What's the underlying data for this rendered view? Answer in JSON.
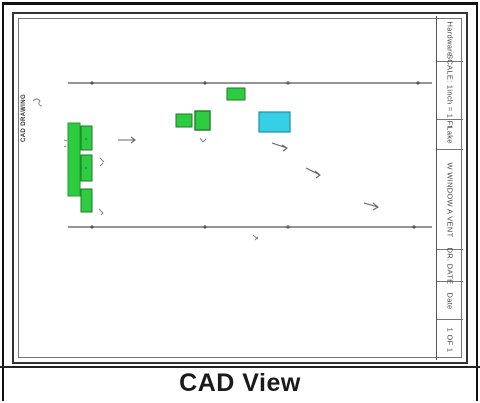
{
  "caption": "CAD View",
  "drawing": {
    "sheet_label": "CAD DRAWING",
    "title_block": [
      "Hardware",
      "SCALE: 1inch = 1 Ft",
      "Lake",
      "W WINDOW A VENT",
      "DR. DATE",
      "Date",
      "1 OF 1"
    ],
    "colors": {
      "green": "#2ecc40",
      "green_dark": "#1f9e2c",
      "cyan": "#35d0e6",
      "line": "#555555"
    }
  }
}
